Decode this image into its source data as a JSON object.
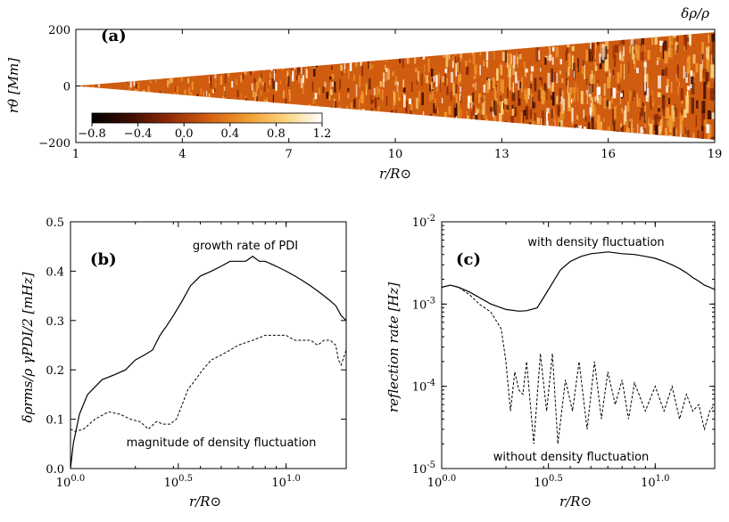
{
  "chart_data": [
    {
      "type": "heatmap",
      "panel_label": "(a)",
      "title": "δρ/ρ",
      "xlabel": "r/R⊙",
      "ylabel": "rθ [Mm]",
      "xlim": [
        1,
        19
      ],
      "ylim": [
        -200,
        200
      ],
      "x_ticks": [
        "1",
        "4",
        "7",
        "10",
        "13",
        "16",
        "19"
      ],
      "x_tick_values": [
        1,
        4,
        7,
        10,
        13,
        16,
        19
      ],
      "y_ticks": [
        "200",
        "0",
        "−200"
      ],
      "y_tick_values": [
        200,
        0,
        -200
      ],
      "half_width_Mm": {
        "r_inner": 0,
        "r_outer": 190
      },
      "colorbar": {
        "range": [
          -0.8,
          1.2
        ],
        "ticks": [
          "−0.8",
          "−0.4",
          "0.0",
          "0.4",
          "0.8",
          "1.2"
        ],
        "tick_values": [
          -0.8,
          -0.4,
          0.0,
          0.4,
          0.8,
          1.2
        ],
        "colors": [
          "#000000",
          "#3d0c02",
          "#8e2a05",
          "#d05c10",
          "#f09a2e",
          "#fbd27a",
          "#ffffff"
        ]
      }
    },
    {
      "type": "line",
      "panel_label": "(b)",
      "xlabel": "r/R⊙",
      "ylabel": "δρrms/ρ    γPDI/2 [mHz]",
      "x_scale": "log",
      "xlim": [
        1.0,
        19.0
      ],
      "ylim": [
        0.0,
        0.5
      ],
      "x_ticks": [
        "10^0.0",
        "10^0.5",
        "10^1.0"
      ],
      "y_ticks": [
        "0.0",
        "0.1",
        "0.2",
        "0.3",
        "0.4",
        "0.5"
      ],
      "y_tick_values": [
        0.0,
        0.1,
        0.2,
        0.3,
        0.4,
        0.5
      ],
      "series": [
        {
          "name": "growth rate of PDI",
          "style": "solid",
          "x": [
            1.0,
            1.03,
            1.1,
            1.2,
            1.4,
            1.6,
            1.8,
            2.0,
            2.2,
            2.4,
            2.6,
            2.7,
            2.8,
            3.0,
            3.3,
            3.6,
            4.0,
            4.5,
            5.0,
            5.5,
            6.0,
            6.5,
            7.0,
            7.5,
            8.0,
            9.0,
            10.0,
            11.0,
            12.0,
            13.0,
            14.0,
            15.0,
            16.0,
            17.0,
            18.0,
            19.0
          ],
          "y": [
            0.0,
            0.05,
            0.11,
            0.15,
            0.18,
            0.19,
            0.2,
            0.22,
            0.23,
            0.24,
            0.27,
            0.28,
            0.29,
            0.31,
            0.34,
            0.37,
            0.39,
            0.4,
            0.41,
            0.42,
            0.42,
            0.42,
            0.43,
            0.42,
            0.42,
            0.41,
            0.4,
            0.39,
            0.38,
            0.37,
            0.36,
            0.35,
            0.34,
            0.33,
            0.31,
            0.3
          ]
        },
        {
          "name": "magnitude of density fluctuation",
          "style": "dashed",
          "x": [
            1.0,
            1.05,
            1.15,
            1.3,
            1.5,
            1.7,
            1.9,
            2.1,
            2.3,
            2.5,
            2.7,
            2.9,
            3.1,
            3.3,
            3.5,
            3.8,
            4.1,
            4.5,
            5.0,
            5.5,
            6.0,
            7.0,
            8.0,
            9.0,
            10.0,
            11.0,
            12.0,
            13.0,
            14.0,
            15.0,
            16.0,
            17.0,
            17.5,
            18.0,
            19.0
          ],
          "y": [
            0.08,
            0.075,
            0.08,
            0.1,
            0.115,
            0.11,
            0.1,
            0.095,
            0.08,
            0.095,
            0.09,
            0.09,
            0.1,
            0.13,
            0.16,
            0.18,
            0.2,
            0.22,
            0.23,
            0.24,
            0.25,
            0.26,
            0.27,
            0.27,
            0.27,
            0.26,
            0.26,
            0.26,
            0.25,
            0.26,
            0.26,
            0.25,
            0.22,
            0.21,
            0.24
          ]
        }
      ]
    },
    {
      "type": "line",
      "panel_label": "(c)",
      "xlabel": "r/R⊙",
      "ylabel": "reflection rate [Hz]",
      "x_scale": "log",
      "y_scale": "log",
      "xlim": [
        1.0,
        19.0
      ],
      "ylim": [
        1e-05,
        0.01
      ],
      "x_ticks": [
        "10^0.0",
        "10^0.5",
        "10^1.0"
      ],
      "y_ticks": [
        "10^-2",
        "10^-3",
        "10^-4",
        "10^-5"
      ],
      "series": [
        {
          "name": "with density fluctuation",
          "style": "solid",
          "x": [
            1.0,
            1.1,
            1.2,
            1.35,
            1.5,
            1.7,
            2.0,
            2.3,
            2.5,
            2.8,
            3.0,
            3.3,
            3.6,
            4.0,
            4.5,
            5.0,
            5.5,
            6.0,
            6.5,
            7.0,
            8.0,
            9.0,
            10.0,
            11.0,
            12.0,
            13.0,
            14.0,
            15.0,
            16.0,
            17.0,
            18.0,
            19.0
          ],
          "y": [
            0.0016,
            0.0017,
            0.0016,
            0.0014,
            0.0012,
            0.001,
            0.00086,
            0.00082,
            0.00083,
            0.0009,
            0.0012,
            0.0018,
            0.0026,
            0.0033,
            0.0038,
            0.0041,
            0.0042,
            0.0043,
            0.0042,
            0.0041,
            0.004,
            0.0038,
            0.0036,
            0.0033,
            0.003,
            0.0027,
            0.0024,
            0.0021,
            0.0019,
            0.0017,
            0.0016,
            0.0015
          ]
        },
        {
          "name": "without density fluctuation",
          "style": "dashed",
          "x": [
            1.0,
            1.1,
            1.2,
            1.35,
            1.5,
            1.7,
            1.9,
            2.0,
            2.1,
            2.2,
            2.3,
            2.4,
            2.5,
            2.7,
            2.9,
            3.1,
            3.3,
            3.5,
            3.8,
            4.1,
            4.4,
            4.8,
            5.2,
            5.6,
            6.0,
            6.5,
            7.0,
            7.5,
            8.0,
            9.0,
            10.0,
            11.0,
            12.0,
            13.0,
            14.0,
            15.0,
            16.0,
            17.0,
            18.0,
            19.0
          ],
          "y": [
            0.0016,
            0.0017,
            0.0016,
            0.0013,
            0.001,
            0.0008,
            0.0005,
            0.0002,
            5e-05,
            0.00015,
            9e-05,
            8e-05,
            0.0002,
            2e-05,
            0.00025,
            5e-05,
            0.00025,
            2e-05,
            0.00012,
            5e-05,
            0.0002,
            3e-05,
            0.0002,
            4e-05,
            0.00015,
            6e-05,
            0.00012,
            4e-05,
            0.00011,
            5e-05,
            0.0001,
            5e-05,
            0.0001,
            4e-05,
            8e-05,
            5e-05,
            6e-05,
            3e-05,
            5e-05,
            6e-05
          ]
        }
      ]
    }
  ]
}
